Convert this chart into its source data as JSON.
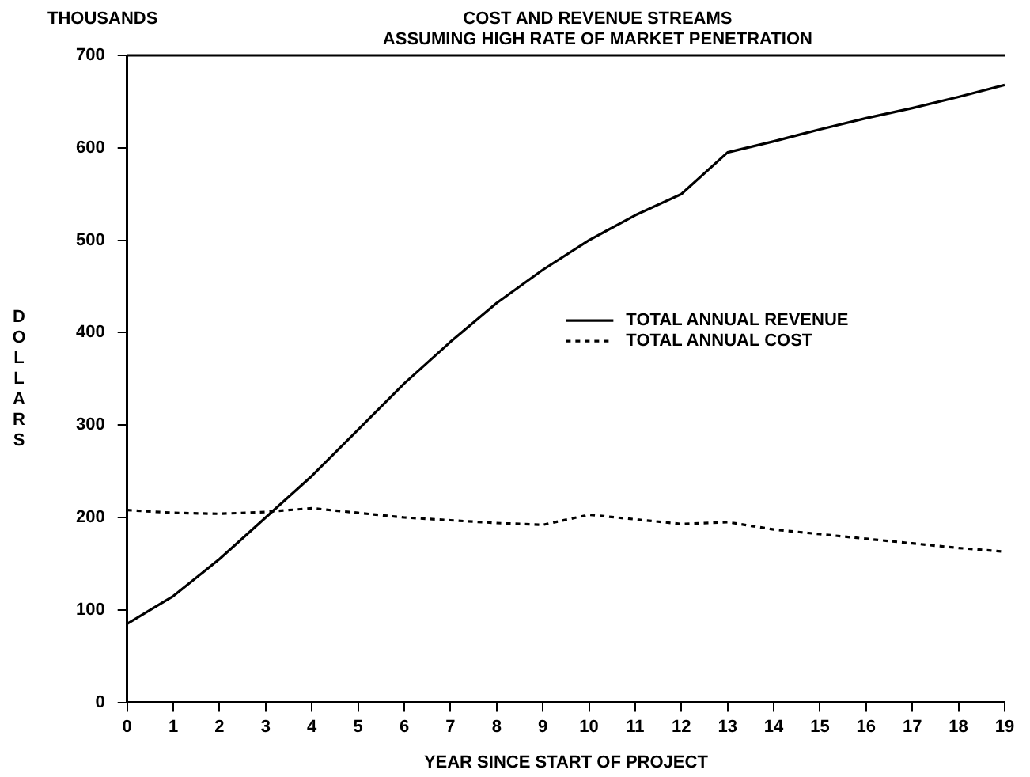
{
  "chart_data": {
    "type": "line",
    "title": "COST AND REVENUE STREAMS",
    "subtitle": "ASSUMING HIGH RATE OF MARKET PENETRATION",
    "xlabel": "YEAR SINCE START OF PROJECT",
    "ylabel": "DOLLARS",
    "annotations": [
      "THOUSANDS"
    ],
    "x": [
      0,
      1,
      2,
      3,
      4,
      5,
      6,
      7,
      8,
      9,
      10,
      11,
      12,
      13,
      14,
      15,
      16,
      17,
      18,
      19
    ],
    "xlim": [
      0,
      19
    ],
    "xticks": [
      0,
      1,
      2,
      3,
      4,
      5,
      6,
      7,
      8,
      9,
      10,
      11,
      12,
      13,
      14,
      15,
      16,
      17,
      18,
      19
    ],
    "series": [
      {
        "name": "TOTAL ANNUAL REVENUE",
        "color": "#000000",
        "line_style": "solid",
        "values": [
          85,
          115,
          155,
          200,
          245,
          295,
          345,
          390,
          432,
          468,
          500,
          527,
          550,
          595,
          607,
          620,
          632,
          643,
          655,
          668
        ]
      },
      {
        "name": "TOTAL ANNUAL COST",
        "color": "#000000",
        "line_style": "dotted",
        "values": [
          208,
          205,
          204,
          206,
          210,
          205,
          200,
          197,
          194,
          192,
          203,
          198,
          193,
          195,
          187,
          182,
          177,
          172,
          167,
          163
        ]
      }
    ],
    "ylim": [
      0,
      700
    ],
    "yticks": [
      0,
      100,
      200,
      300,
      400,
      500,
      600,
      700
    ],
    "grid": false,
    "legend": "center right",
    "marker": "none"
  }
}
